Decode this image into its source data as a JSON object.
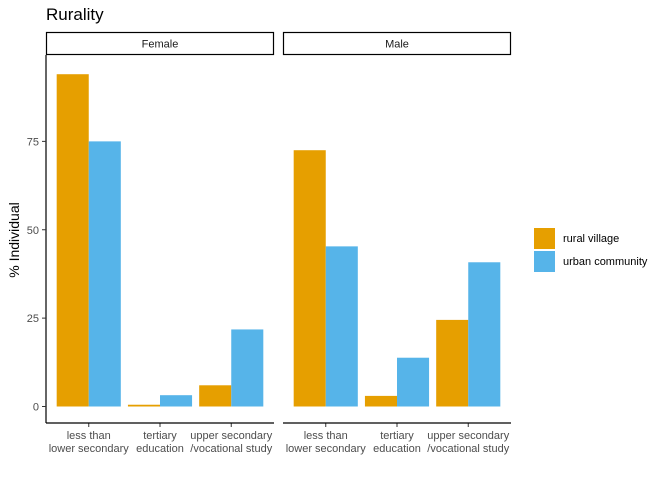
{
  "chart_data": {
    "type": "bar",
    "title": "Rurality",
    "ylabel": "% Individual",
    "xlabel": "",
    "ylim": [
      0,
      100
    ],
    "yticks": [
      0,
      25,
      50,
      75
    ],
    "categories": [
      [
        "less than",
        "lower secondary"
      ],
      [
        "tertiary",
        "education"
      ],
      [
        "upper secondary",
        "/vocational study"
      ]
    ],
    "panels": [
      {
        "label": "Female",
        "series": [
          {
            "name": "rural village",
            "values": [
              94,
              0.5,
              6
            ]
          },
          {
            "name": "urban community",
            "values": [
              75,
              3.2,
              21.8
            ]
          }
        ]
      },
      {
        "label": "Male",
        "series": [
          {
            "name": "rural village",
            "values": [
              72.5,
              3,
              24.5
            ]
          },
          {
            "name": "urban community",
            "values": [
              45.3,
              13.8,
              40.8
            ]
          }
        ]
      }
    ],
    "legend": {
      "position": "right",
      "items": [
        {
          "label": "rural village",
          "color": "#E69F00"
        },
        {
          "label": "urban community",
          "color": "#56B4E9"
        }
      ]
    },
    "grid": false
  }
}
